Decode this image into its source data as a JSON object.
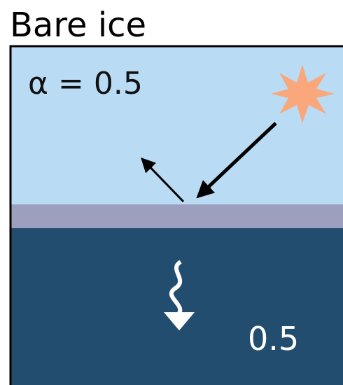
{
  "title": "Bare ice",
  "albedo_label": "α = 0.5",
  "absorbed_label": "0.5"
}
